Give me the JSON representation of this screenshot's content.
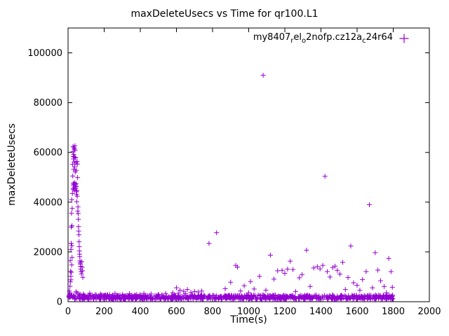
{
  "chart_data": {
    "type": "scatter",
    "title": "maxDeleteUsecs vs Time for qr100.L1",
    "xlabel": "Time(s)",
    "ylabel": "maxDeleteUsecs",
    "xlim": [
      0,
      2000
    ],
    "ylim": [
      0,
      110000
    ],
    "xtick_step": 200,
    "ytick_max": 100000,
    "ytick_step": 20000,
    "grid": false,
    "legend": {
      "position": "top-right-inside",
      "plain": "my8407_rel_o2nofp.cz12a_c24r64",
      "segments": [
        {
          "text": "my8407",
          "sub": false
        },
        {
          "text": "r",
          "sub": true
        },
        {
          "text": "el",
          "sub": false
        },
        {
          "text": "o",
          "sub": true
        },
        {
          "text": "2nofp.cz12a",
          "sub": false
        },
        {
          "text": "c",
          "sub": true
        },
        {
          "text": "24r64",
          "sub": false
        }
      ]
    },
    "marker": {
      "shape": "plus",
      "color": "#9400D3",
      "size": 7
    },
    "baseline_band": {
      "x_min": 2,
      "x_max": 1805,
      "y_base": 1000,
      "y_span": 1700,
      "count": 900,
      "seed": 42,
      "bias": 1.3
    },
    "series": [
      {
        "name": "my8407_rel_o2nofp.cz12a_c24r64",
        "points": [
          [
            5,
            1900
          ],
          [
            6,
            2200
          ],
          [
            7,
            4300
          ],
          [
            8,
            3000
          ],
          [
            9,
            2300
          ],
          [
            10,
            3600
          ],
          [
            11,
            6200
          ],
          [
            12,
            16500
          ],
          [
            13,
            8000
          ],
          [
            14,
            12200
          ],
          [
            15,
            10200
          ],
          [
            16,
            21000
          ],
          [
            16,
            8800
          ],
          [
            17,
            23500
          ],
          [
            18,
            30000
          ],
          [
            18,
            11800
          ],
          [
            19,
            35500
          ],
          [
            20,
            41000
          ],
          [
            20,
            14800
          ],
          [
            21,
            22500
          ],
          [
            22,
            30500
          ],
          [
            22,
            17800
          ],
          [
            23,
            37500
          ],
          [
            24,
            43500
          ],
          [
            25,
            55200
          ],
          [
            26,
            50500
          ],
          [
            27,
            60300
          ],
          [
            28,
            62400
          ],
          [
            28,
            45200
          ],
          [
            29,
            58400
          ],
          [
            29,
            47600
          ],
          [
            30,
            57400
          ],
          [
            30,
            46800
          ],
          [
            31,
            53200
          ],
          [
            31,
            45600
          ],
          [
            32,
            59200
          ],
          [
            33,
            61900
          ],
          [
            33,
            47200
          ],
          [
            34,
            56200
          ],
          [
            35,
            61400
          ],
          [
            35,
            44800
          ],
          [
            36,
            58100
          ],
          [
            36,
            46200
          ],
          [
            37,
            54200
          ],
          [
            37,
            47800
          ],
          [
            38,
            62700
          ],
          [
            39,
            60900
          ],
          [
            40,
            52100
          ],
          [
            41,
            47000
          ],
          [
            42,
            46100
          ],
          [
            42,
            57800
          ],
          [
            43,
            45400
          ],
          [
            44,
            47400
          ],
          [
            44,
            55800
          ],
          [
            44,
            4000
          ],
          [
            45,
            46400
          ],
          [
            46,
            44200
          ],
          [
            46,
            52800
          ],
          [
            47,
            43100
          ],
          [
            48,
            40200
          ],
          [
            49,
            44600
          ],
          [
            50,
            56400
          ],
          [
            50,
            3600
          ],
          [
            51,
            42400
          ],
          [
            52,
            55300
          ],
          [
            53,
            49900
          ],
          [
            54,
            36400
          ],
          [
            55,
            38100
          ],
          [
            56,
            35400
          ],
          [
            57,
            33100
          ],
          [
            58,
            30200
          ],
          [
            59,
            28400
          ],
          [
            60,
            26900
          ],
          [
            60,
            3100
          ],
          [
            61,
            24100
          ],
          [
            62,
            22100
          ],
          [
            63,
            20400
          ],
          [
            64,
            19100
          ],
          [
            65,
            18100
          ],
          [
            66,
            16400
          ],
          [
            67,
            15600
          ],
          [
            68,
            15100
          ],
          [
            69,
            14200
          ],
          [
            70,
            13100
          ],
          [
            70,
            2900
          ],
          [
            72,
            12100
          ],
          [
            74,
            11200
          ],
          [
            75,
            16100
          ],
          [
            78,
            13900
          ],
          [
            80,
            12400
          ],
          [
            82,
            9800
          ],
          [
            85,
            3100
          ],
          [
            88,
            2600
          ],
          [
            90,
            2400
          ],
          [
            95,
            2200
          ],
          [
            120,
            3400
          ],
          [
            150,
            2900
          ],
          [
            180,
            3100
          ],
          [
            230,
            2900
          ],
          [
            260,
            3300
          ],
          [
            300,
            2800
          ],
          [
            340,
            3200
          ],
          [
            380,
            2900
          ],
          [
            420,
            3300
          ],
          [
            460,
            3100
          ],
          [
            500,
            2900
          ],
          [
            540,
            3300
          ],
          [
            580,
            3600
          ],
          [
            600,
            5600
          ],
          [
            610,
            3400
          ],
          [
            620,
            4600
          ],
          [
            640,
            4200
          ],
          [
            650,
            3300
          ],
          [
            660,
            4900
          ],
          [
            680,
            3700
          ],
          [
            700,
            4100
          ],
          [
            720,
            3900
          ],
          [
            740,
            4300
          ],
          [
            780,
            23400
          ],
          [
            822,
            27700
          ],
          [
            870,
            5200
          ],
          [
            900,
            7800
          ],
          [
            928,
            14600
          ],
          [
            938,
            13900
          ],
          [
            955,
            4300
          ],
          [
            975,
            6400
          ],
          [
            1000,
            3600
          ],
          [
            1010,
            8100
          ],
          [
            1030,
            5100
          ],
          [
            1060,
            10200
          ],
          [
            1080,
            91000
          ],
          [
            1095,
            4600
          ],
          [
            1120,
            18700
          ],
          [
            1140,
            9100
          ],
          [
            1160,
            12400
          ],
          [
            1185,
            12600
          ],
          [
            1200,
            11400
          ],
          [
            1215,
            13100
          ],
          [
            1230,
            16300
          ],
          [
            1245,
            12900
          ],
          [
            1260,
            4100
          ],
          [
            1280,
            9600
          ],
          [
            1295,
            10900
          ],
          [
            1320,
            20700
          ],
          [
            1340,
            6100
          ],
          [
            1360,
            13600
          ],
          [
            1380,
            14100
          ],
          [
            1395,
            13200
          ],
          [
            1410,
            14600
          ],
          [
            1422,
            50400
          ],
          [
            1435,
            12100
          ],
          [
            1450,
            9900
          ],
          [
            1465,
            13700
          ],
          [
            1478,
            14300
          ],
          [
            1490,
            12600
          ],
          [
            1505,
            11100
          ],
          [
            1520,
            15800
          ],
          [
            1535,
            4900
          ],
          [
            1550,
            9700
          ],
          [
            1565,
            22400
          ],
          [
            1580,
            7600
          ],
          [
            1600,
            6600
          ],
          [
            1615,
            4600
          ],
          [
            1630,
            8900
          ],
          [
            1650,
            12100
          ],
          [
            1668,
            39000
          ],
          [
            1685,
            5600
          ],
          [
            1700,
            19700
          ],
          [
            1715,
            12700
          ],
          [
            1730,
            8400
          ],
          [
            1750,
            6100
          ],
          [
            1762,
            3600
          ],
          [
            1775,
            17400
          ],
          [
            1788,
            12100
          ],
          [
            1795,
            5800
          ]
        ]
      }
    ]
  }
}
